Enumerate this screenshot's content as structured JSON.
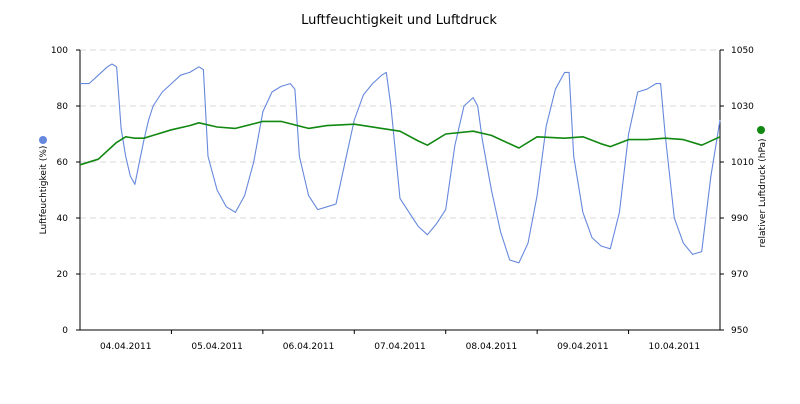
{
  "chart_data": {
    "type": "line",
    "title": "Luftfeuchtigkeit und Luftdruck",
    "xlabel": "",
    "x_ticks": [
      "04.04.2011",
      "05.04.2011",
      "06.04.2011",
      "07.04.2011",
      "08.04.2011",
      "09.04.2011",
      "10.04.2011"
    ],
    "xlim": [
      0,
      7
    ],
    "y_left": {
      "label": "Luftfeuchtigkeit (%)",
      "lim": [
        0,
        100
      ],
      "ticks": [
        "0",
        "20",
        "40",
        "60",
        "80",
        "100"
      ],
      "color": "#6688dd"
    },
    "y_right": {
      "label": "relativer Luftdruck (hPa)",
      "lim": [
        950,
        1050
      ],
      "ticks": [
        "950",
        "970",
        "990",
        "1010",
        "1030",
        "1050"
      ],
      "color": "#118811"
    },
    "grid": "horizontal-dashed",
    "series": [
      {
        "axis": "left",
        "color": "#6688dd",
        "x": [
          0.0,
          0.1,
          0.2,
          0.3,
          0.35,
          0.4,
          0.45,
          0.5,
          0.55,
          0.6,
          0.65,
          0.7,
          0.75,
          0.8,
          0.9,
          1.0,
          1.1,
          1.2,
          1.3,
          1.35,
          1.4,
          1.5,
          1.6,
          1.7,
          1.8,
          1.9,
          2.0,
          2.1,
          2.2,
          2.3,
          2.35,
          2.4,
          2.5,
          2.6,
          2.7,
          2.8,
          2.9,
          3.0,
          3.1,
          3.2,
          3.3,
          3.35,
          3.4,
          3.5,
          3.6,
          3.7,
          3.8,
          3.9,
          4.0,
          4.1,
          4.2,
          4.3,
          4.35,
          4.4,
          4.5,
          4.6,
          4.7,
          4.8,
          4.9,
          5.0,
          5.1,
          5.2,
          5.3,
          5.35,
          5.4,
          5.5,
          5.6,
          5.7,
          5.8,
          5.9,
          6.0,
          6.1,
          6.2,
          6.3,
          6.35,
          6.4,
          6.5,
          6.6,
          6.7,
          6.8,
          6.9,
          7.0
        ],
        "y": [
          88,
          88,
          91,
          94,
          95,
          94,
          72,
          62,
          55,
          52,
          60,
          68,
          75,
          80,
          85,
          88,
          91,
          92,
          94,
          93,
          62,
          50,
          44,
          42,
          48,
          60,
          78,
          85,
          87,
          88,
          86,
          62,
          48,
          43,
          44,
          45,
          60,
          75,
          84,
          88,
          91,
          92,
          80,
          47,
          42,
          37,
          34,
          38,
          43,
          66,
          80,
          83,
          80,
          68,
          50,
          35,
          25,
          24,
          31,
          48,
          73,
          86,
          92,
          92,
          62,
          42,
          33,
          30,
          29,
          42,
          70,
          85,
          86,
          88,
          88,
          70,
          40,
          31,
          27,
          28,
          55,
          75
        ]
      },
      {
        "axis": "right",
        "color": "#118811",
        "x": [
          0.0,
          0.2,
          0.4,
          0.5,
          0.6,
          0.7,
          0.8,
          1.0,
          1.2,
          1.3,
          1.5,
          1.7,
          2.0,
          2.2,
          2.5,
          2.7,
          3.0,
          3.3,
          3.5,
          3.7,
          3.8,
          4.0,
          4.3,
          4.5,
          4.8,
          5.0,
          5.3,
          5.5,
          5.7,
          5.8,
          6.0,
          6.2,
          6.4,
          6.6,
          6.8,
          7.0
        ],
        "y": [
          1009,
          1011,
          1017,
          1019,
          1018.5,
          1018.5,
          1019.5,
          1021.5,
          1023,
          1024,
          1022.5,
          1022,
          1024.5,
          1024.5,
          1022,
          1023,
          1023.5,
          1022,
          1021,
          1017.5,
          1016,
          1020,
          1021,
          1019.5,
          1015,
          1019,
          1018.5,
          1019,
          1016.5,
          1015.5,
          1018,
          1018,
          1018.5,
          1018,
          1016,
          1019
        ]
      }
    ]
  }
}
